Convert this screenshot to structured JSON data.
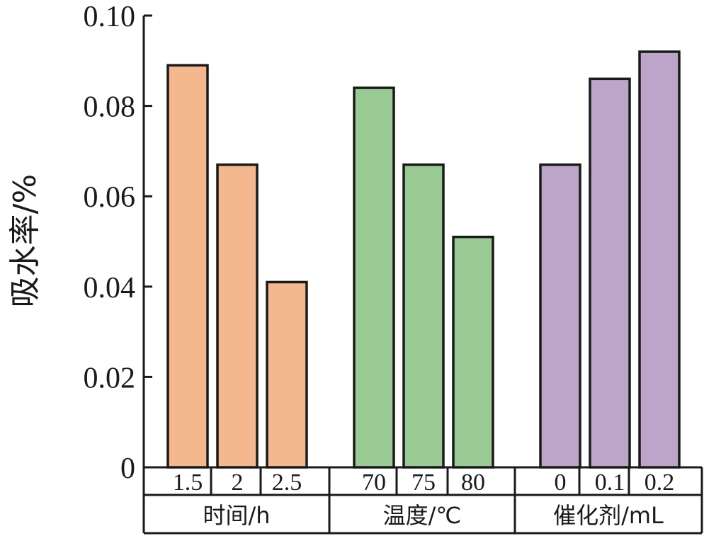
{
  "chart_data": {
    "type": "bar",
    "ylabel": "吸水率/%",
    "ylim": [
      0,
      0.1
    ],
    "yticks": [
      "0",
      "0.02",
      "0.04",
      "0.06",
      "0.08",
      "0.10"
    ],
    "yticks_values": [
      0,
      0.02,
      0.04,
      0.06,
      0.08,
      0.1
    ],
    "grid": false,
    "groups": [
      {
        "name": "时间/h",
        "color": "#F4B78E",
        "categories": [
          "1.5",
          "2",
          "2.5"
        ],
        "values": [
          0.089,
          0.067,
          0.041
        ]
      },
      {
        "name": "温度/℃",
        "color": "#9ACA93",
        "categories": [
          "70",
          "75",
          "80"
        ],
        "values": [
          0.084,
          0.067,
          0.051
        ]
      },
      {
        "name": "催化剂/mL",
        "color": "#BDA5C9",
        "categories": [
          "0",
          "0.1",
          "0.2"
        ],
        "values": [
          0.067,
          0.086,
          0.092
        ]
      }
    ]
  }
}
